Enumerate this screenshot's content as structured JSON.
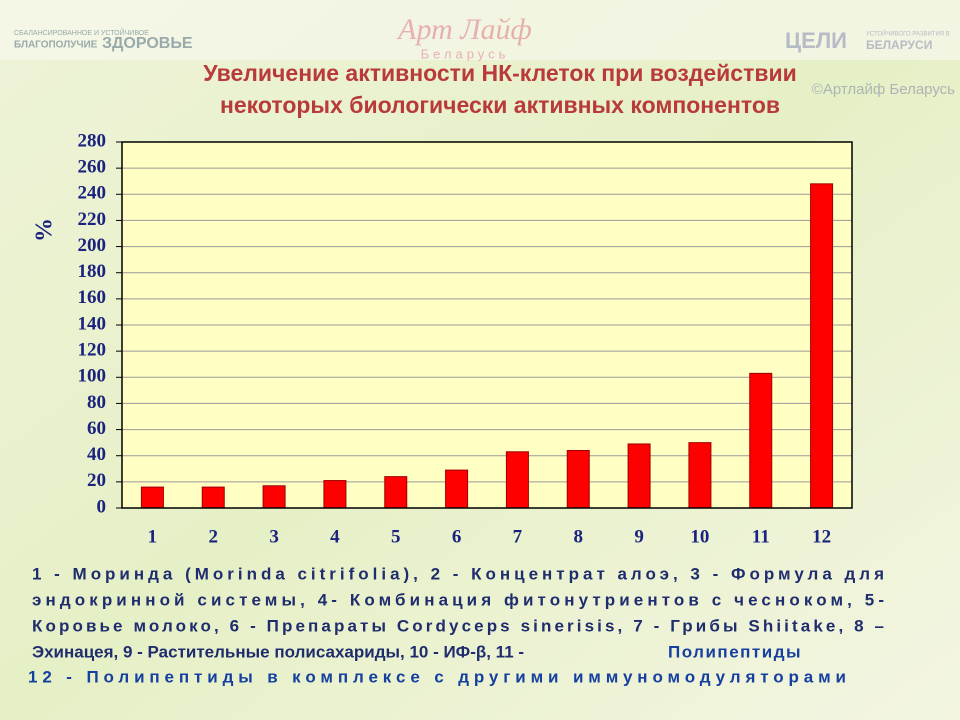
{
  "watermarks": [
    "СБАЛАНСИРОВАННОЕ И УСТОЙЧИВОЕ",
    "БЛАГОПОЛУЧИЕ",
    "ЗДОРОВЬЕ",
    "Арт Лайф",
    "Беларусь",
    "ЦЕЛИ",
    "УСТОЙЧИВОГО РАЗВИТИЯ В",
    "БЕЛАРУСИ",
    "©Артлайф Беларусь"
  ],
  "chart_data": {
    "type": "bar",
    "title": [
      "Увеличение активности НК-клеток при воздействии",
      "некоторых биологически активных компонентов"
    ],
    "y_label": "%",
    "categories": [
      "1",
      "2",
      "3",
      "4",
      "5",
      "6",
      "7",
      "8",
      "9",
      "10",
      "11",
      "12"
    ],
    "values": [
      16,
      16,
      17,
      21,
      24,
      29,
      43,
      44,
      49,
      50,
      103,
      248
    ],
    "color": "#ff0000",
    "ylim": [
      0,
      280
    ],
    "yticks": [
      0,
      20,
      40,
      60,
      80,
      100,
      120,
      140,
      160,
      180,
      200,
      220,
      240,
      260,
      280
    ],
    "grid": true
  },
  "caption": {
    "lines": [
      "1 - Моринда (Morinda citrifolia), 2 - Концентрат алоэ, 3 - Формула для",
      "эндокринной системы, 4- Комбинация фитонутриентов с чесноком, 5-",
      "Коровье молоко, 6 - Препараты Cordyceps sinerisis, 7 - Грибы Shiitake, 8 –",
      "Эхинацея, 9 - Растительные полисахариды, 10 - ИФ-β, 11 -"
    ],
    "highlight": "Полипептиды",
    "last_line": "12 - Полипептиды в комплексе с другими иммуномодуляторами"
  }
}
